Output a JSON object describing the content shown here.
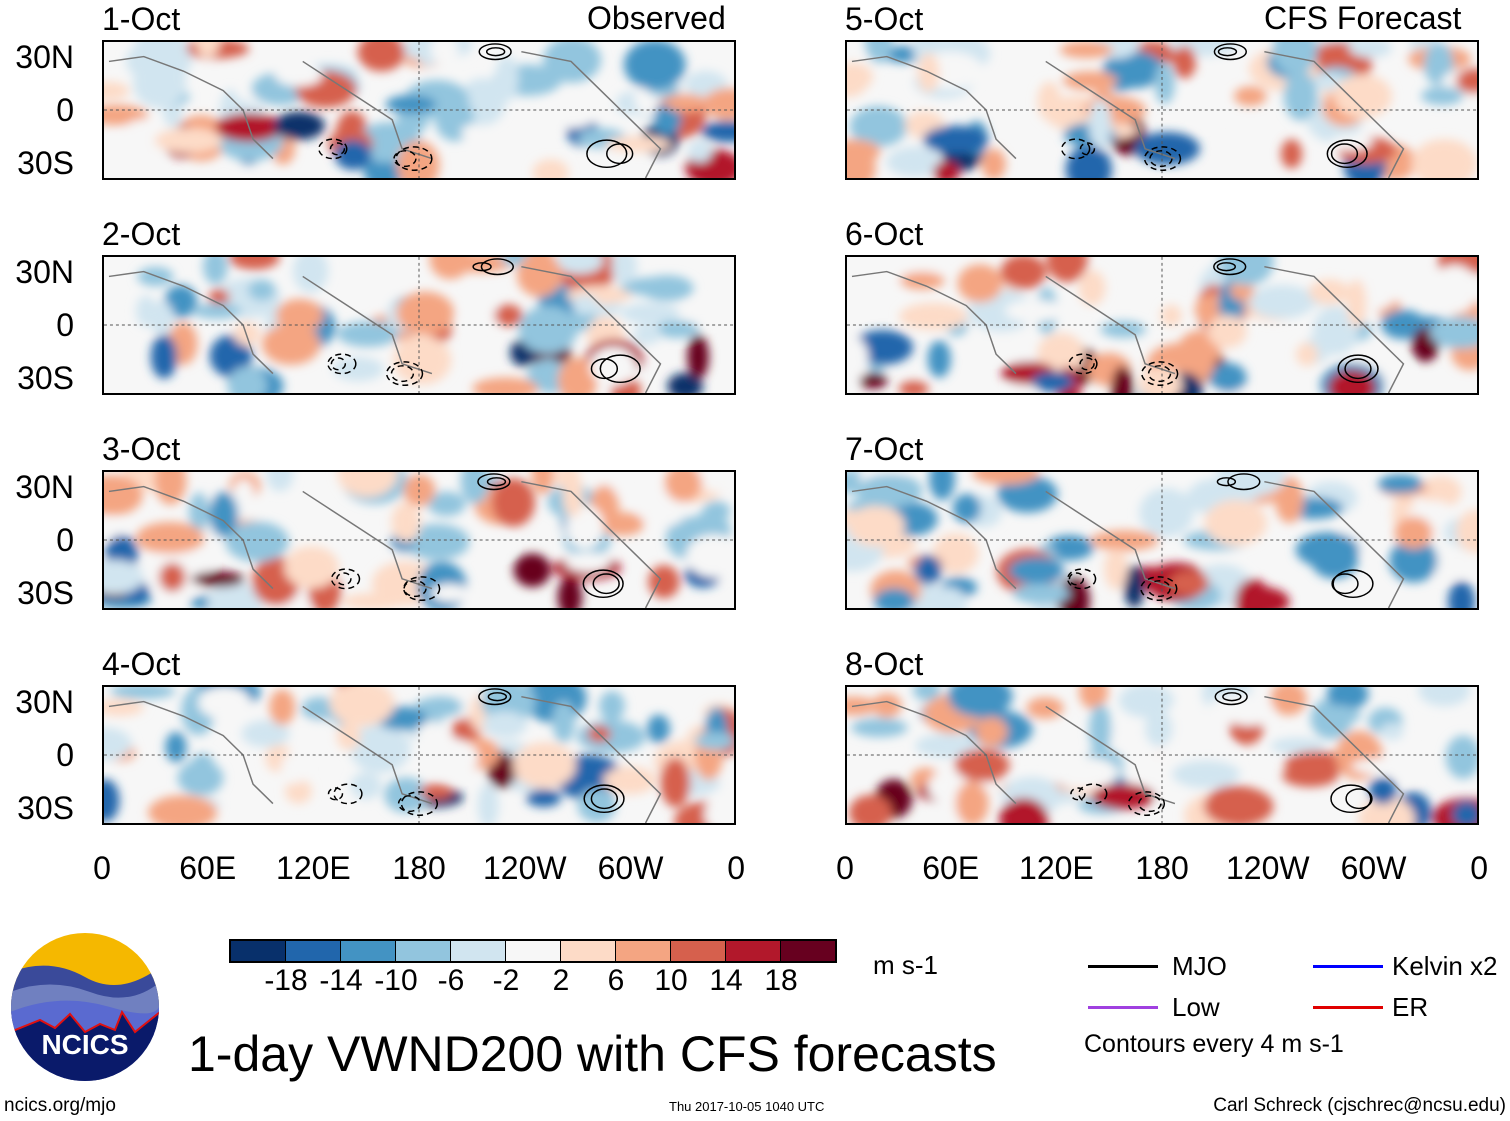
{
  "header": {
    "left_title": "Observed",
    "right_title": "CFS Forecast"
  },
  "panels_observed": [
    {
      "date": "1-Oct"
    },
    {
      "date": "2-Oct"
    },
    {
      "date": "3-Oct"
    },
    {
      "date": "4-Oct"
    }
  ],
  "panels_forecast": [
    {
      "date": "5-Oct"
    },
    {
      "date": "6-Oct"
    },
    {
      "date": "7-Oct"
    },
    {
      "date": "8-Oct"
    }
  ],
  "y_ticks": [
    "30N",
    "0",
    "30S"
  ],
  "x_ticks": [
    "0",
    "60E",
    "120E",
    "180",
    "120W",
    "60W",
    "0"
  ],
  "colorbar": {
    "colors": [
      "#08306b",
      "#2166ac",
      "#4393c3",
      "#92c5de",
      "#d1e5f0",
      "#f7f7f7",
      "#fddbc7",
      "#f4a582",
      "#d6604d",
      "#b2182b",
      "#67001f"
    ],
    "labels": [
      "-18",
      "-14",
      "-10",
      "-6",
      "-2",
      "2",
      "6",
      "10",
      "14",
      "18"
    ],
    "units": "m s-1"
  },
  "legend": {
    "items": [
      {
        "label": "MJO",
        "color": "#000000"
      },
      {
        "label": "Kelvin x2",
        "color": "#0000ff"
      },
      {
        "label": "Low",
        "color": "#a040e0"
      },
      {
        "label": "ER",
        "color": "#e00000"
      }
    ],
    "note": "Contours every 4 m s-1"
  },
  "title": "1-day VWND200 with CFS forecasts",
  "logo": {
    "text": "NCICS"
  },
  "footer": {
    "url": "ncics.org/mjo",
    "timestamp": "Thu 2017-10-05 1040 UTC",
    "author": "Carl Schreck (cjschrec@ncsu.edu)"
  }
}
